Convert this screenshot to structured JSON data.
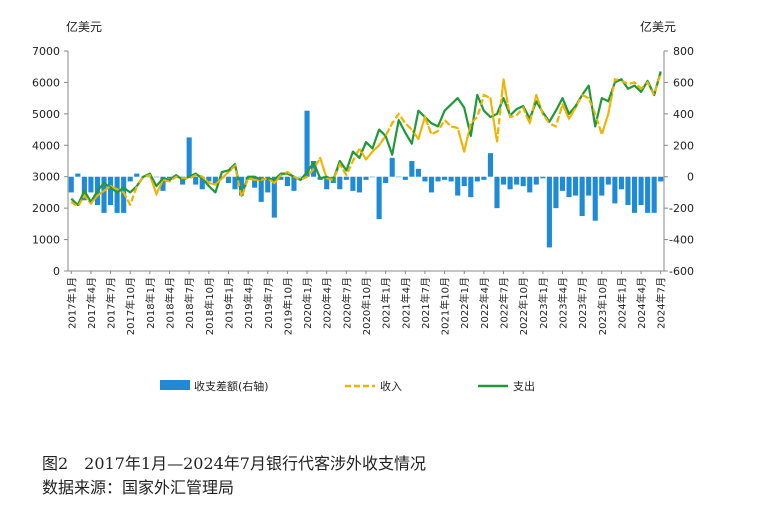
{
  "chart_data": {
    "type": "bar+line",
    "left_unit": "亿美元",
    "right_unit": "亿美元",
    "left_axis": {
      "ylim": [
        0,
        7000
      ],
      "ticks": [
        0,
        1000,
        2000,
        3000,
        4000,
        5000,
        6000,
        7000
      ]
    },
    "right_axis": {
      "ylim": [
        -600,
        800
      ],
      "ticks": [
        -600,
        -400,
        -200,
        0,
        200,
        400,
        600,
        800
      ]
    },
    "x_tick_labels": [
      "2017年1月",
      "2017年4月",
      "2017年7月",
      "2017年10月",
      "2018年1月",
      "2018年4月",
      "2018年7月",
      "2018年10月",
      "2019年1月",
      "2019年4月",
      "2019年7月",
      "2019年10月",
      "2020年1月",
      "2020年4月",
      "2020年7月",
      "2020年10月",
      "2021年1月",
      "2021年4月",
      "2021年7月",
      "2021年10月",
      "2022年1月",
      "2022年4月",
      "2022年7月",
      "2022年10月",
      "2023年1月",
      "2023年4月",
      "2023年7月",
      "2023年10月",
      "2024年1月",
      "2024年4月",
      "2024年7月"
    ],
    "months_start": "2017-01",
    "month_count": 91,
    "series": [
      {
        "name": "收支差额(右轴)",
        "type": "bar",
        "axis": "right",
        "color": "#1f8ad6",
        "values": [
          -100,
          20,
          -150,
          -100,
          -180,
          -230,
          -180,
          -230,
          -230,
          -30,
          20,
          0,
          0,
          0,
          -90,
          -10,
          -5,
          -50,
          250,
          -50,
          -80,
          -30,
          -50,
          -10,
          -40,
          -80,
          -120,
          -20,
          -70,
          -160,
          -100,
          -260,
          -20,
          -60,
          -90,
          0,
          420,
          100,
          -20,
          -80,
          -40,
          -80,
          -20,
          -90,
          -100,
          -20,
          0,
          -270,
          -40,
          120,
          0,
          -20,
          100,
          50,
          -30,
          -100,
          -30,
          -20,
          -30,
          -120,
          -60,
          -130,
          -30,
          -20,
          150,
          -200,
          -50,
          -80,
          -50,
          -60,
          -100,
          -50,
          -10,
          -450,
          -200,
          -90,
          -130,
          -120,
          -250,
          -120,
          -280,
          -120,
          -50,
          -170,
          -80,
          -180,
          -230,
          -180,
          -230,
          -230,
          -30
        ],
        "values_note_exclude": true
      },
      {
        "name": "收入",
        "type": "line",
        "axis": "left",
        "color": "#f0b400",
        "dashed": true,
        "values": [
          2200,
          2050,
          2400,
          2150,
          2400,
          2550,
          2700,
          2600,
          2500,
          2100,
          2700,
          3000,
          3050,
          2450,
          2900,
          2850,
          3000,
          2950,
          2950,
          3050,
          3000,
          2800,
          2750,
          2950,
          3150,
          3350,
          2350,
          2950,
          2900,
          2900,
          2950,
          2800,
          3050,
          3150,
          3000,
          2900,
          3000,
          3250,
          3600,
          2950,
          2900,
          3400,
          3050,
          3500,
          3900,
          3550,
          3800,
          4000,
          4300,
          4700,
          5000,
          4700,
          4500,
          4200,
          4900,
          4350,
          4450,
          4800,
          4600,
          4550,
          3800,
          4700,
          4900,
          5600,
          5500,
          4100,
          6100,
          4900,
          4950,
          5200,
          4700,
          5600,
          5000,
          4700,
          4600,
          5300,
          4850,
          5200,
          5600,
          5500,
          5000,
          4350,
          5000,
          6100,
          6050,
          5950,
          6000,
          5800,
          6000,
          5600,
          6300
        ],
        "values_note_exclude": true
      },
      {
        "name": "支出",
        "type": "line",
        "axis": "left",
        "color": "#1e9a3a",
        "dashed": false,
        "values": [
          2300,
          2100,
          2550,
          2200,
          2550,
          2800,
          2650,
          2500,
          2650,
          2500,
          2700,
          3000,
          3100,
          2700,
          2950,
          2900,
          3050,
          2900,
          3000,
          3100,
          2950,
          2700,
          2500,
          3150,
          3200,
          3400,
          2400,
          3000,
          3000,
          2900,
          2950,
          2900,
          3100,
          3100,
          3000,
          2900,
          3150,
          3450,
          2950,
          3000,
          2900,
          3500,
          3200,
          3800,
          3600,
          4100,
          3900,
          4500,
          4300,
          3700,
          4800,
          4400,
          4050,
          5100,
          4900,
          4700,
          4600,
          5100,
          5300,
          5500,
          5200,
          4300,
          5600,
          5100,
          4900,
          5000,
          5500,
          4950,
          5150,
          5250,
          4850,
          5400,
          5050,
          4750,
          5100,
          5500,
          5000,
          5250,
          5600,
          5900,
          4600,
          5500,
          5400,
          6000,
          6100,
          5800,
          5900,
          5700,
          6050,
          5600,
          6350
        ],
        "values_note_exclude": true
      }
    ],
    "legend": [
      "收支差额(右轴)",
      "收入",
      "支出"
    ],
    "legend_position": "bottom"
  },
  "caption": {
    "title": "图2　2017年1月—2024年7月银行代客涉外收支情况",
    "source": "数据来源：国家外汇管理局"
  }
}
